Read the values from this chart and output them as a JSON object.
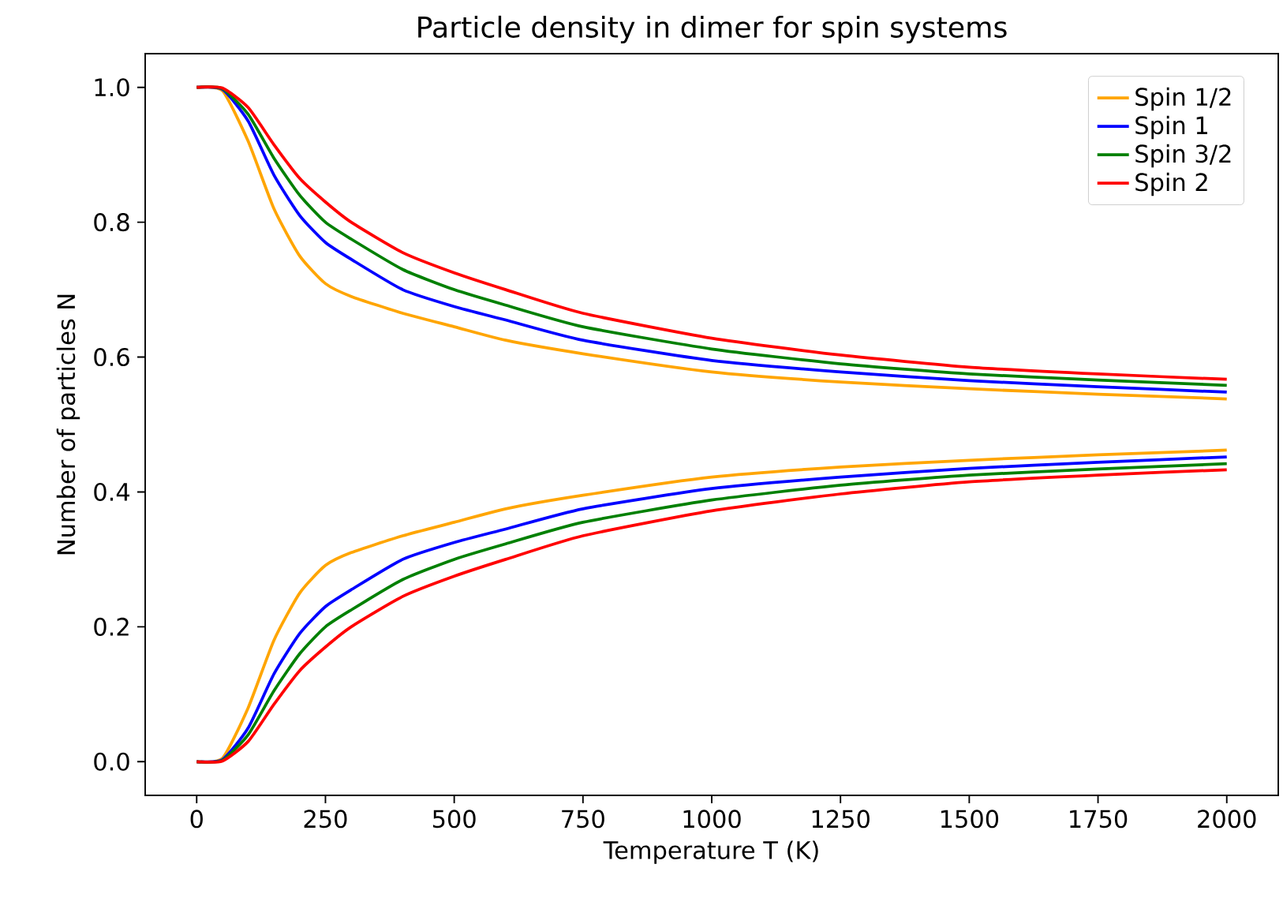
{
  "chart_data": {
    "type": "line",
    "title": "Particle density in dimer for spin systems",
    "xlabel": "Temperature T (K)",
    "ylabel": "Number of particles N",
    "x": [
      0,
      50,
      100,
      150,
      200,
      250,
      300,
      400,
      500,
      600,
      750,
      1000,
      1250,
      1500,
      1750,
      2000
    ],
    "series": [
      {
        "name": "Spin 1/2",
        "color": "#ffa500",
        "values": [
          1.0,
          0.995,
          0.92,
          0.82,
          0.75,
          0.709,
          0.69,
          0.665,
          0.645,
          0.625,
          0.605,
          0.578,
          0.563,
          0.553,
          0.545,
          0.538
        ]
      },
      {
        "name": "Spin 1",
        "color": "#0000ff",
        "values": [
          1.0,
          0.997,
          0.95,
          0.87,
          0.81,
          0.77,
          0.745,
          0.7,
          0.675,
          0.655,
          0.625,
          0.595,
          0.578,
          0.565,
          0.556,
          0.548
        ]
      },
      {
        "name": "Spin 3/2",
        "color": "#008000",
        "values": [
          1.0,
          0.998,
          0.96,
          0.895,
          0.84,
          0.8,
          0.775,
          0.73,
          0.7,
          0.677,
          0.645,
          0.612,
          0.59,
          0.575,
          0.566,
          0.558
        ]
      },
      {
        "name": "Spin 2",
        "color": "#ff0000",
        "values": [
          1.0,
          0.999,
          0.97,
          0.915,
          0.865,
          0.83,
          0.8,
          0.755,
          0.725,
          0.7,
          0.665,
          0.628,
          0.603,
          0.585,
          0.575,
          0.567
        ]
      },
      {
        "color": "#ffa500",
        "values": [
          0.0,
          0.005,
          0.08,
          0.18,
          0.25,
          0.291,
          0.31,
          0.335,
          0.355,
          0.375,
          0.395,
          0.422,
          0.437,
          0.447,
          0.455,
          0.462
        ]
      },
      {
        "color": "#0000ff",
        "values": [
          0.0,
          0.003,
          0.05,
          0.13,
          0.19,
          0.23,
          0.255,
          0.3,
          0.325,
          0.345,
          0.375,
          0.405,
          0.422,
          0.435,
          0.444,
          0.452
        ]
      },
      {
        "color": "#008000",
        "values": [
          0.0,
          0.002,
          0.04,
          0.105,
          0.16,
          0.2,
          0.225,
          0.27,
          0.3,
          0.323,
          0.355,
          0.388,
          0.41,
          0.425,
          0.434,
          0.442
        ]
      },
      {
        "color": "#ff0000",
        "values": [
          0.0,
          0.001,
          0.03,
          0.085,
          0.135,
          0.17,
          0.2,
          0.245,
          0.275,
          0.3,
          0.335,
          0.372,
          0.397,
          0.415,
          0.425,
          0.433
        ]
      }
    ],
    "xlim": [
      -100,
      2100
    ],
    "ylim": [
      -0.05,
      1.05
    ],
    "xticks": [
      0,
      250,
      500,
      750,
      1000,
      1250,
      1500,
      1750,
      2000
    ],
    "yticks": [
      {
        "value": 0,
        "label": "0.0"
      },
      {
        "value": 0.2,
        "label": "0.2"
      },
      {
        "value": 0.4,
        "label": "0.4"
      },
      {
        "value": 0.6,
        "label": "0.6"
      },
      {
        "value": 0.8,
        "label": "0.8"
      },
      {
        "value": 1,
        "label": "1.0"
      }
    ],
    "legend": "top right",
    "grid": false,
    "line_style": "solid",
    "marker": "none"
  }
}
